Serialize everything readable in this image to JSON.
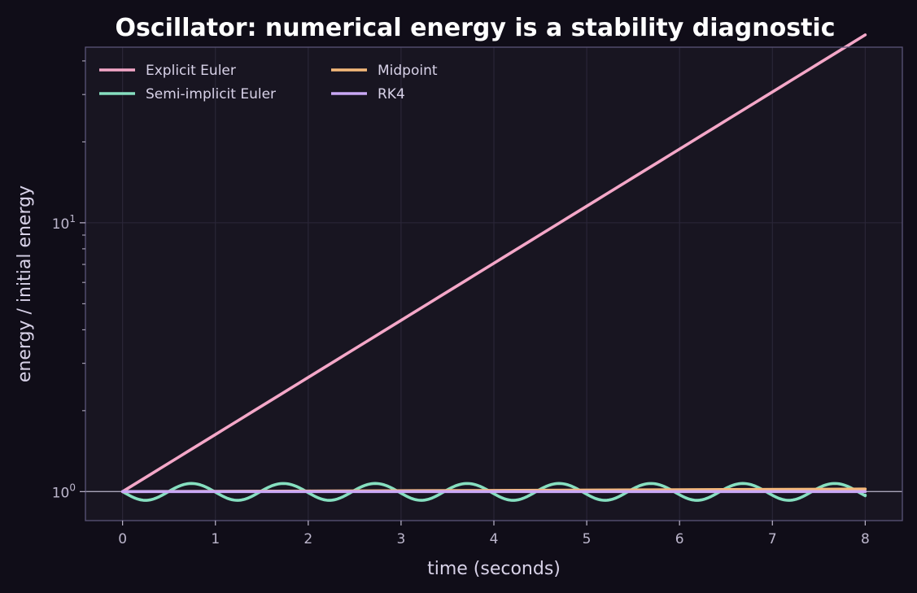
{
  "chart_data": {
    "type": "line",
    "title": "Oscillator: numerical energy is a stability diagnostic",
    "xlabel": "time (seconds)",
    "ylabel": "energy / initial energy",
    "xlim": [
      -0.4,
      8.4
    ],
    "ylim": [
      0.78,
      45
    ],
    "yscale": "log",
    "grid": true,
    "legend_position": "top-left",
    "reference_line": {
      "y": 1.0,
      "color": "#a9a4b8"
    },
    "x_ticks": [
      0,
      1,
      2,
      3,
      4,
      5,
      6,
      7,
      8
    ],
    "x_tick_labels": [
      "0",
      "1",
      "2",
      "3",
      "4",
      "5",
      "6",
      "7",
      "8"
    ],
    "y_major_ticks": [
      1,
      10
    ],
    "y_minor_ticks": [
      2,
      3,
      4,
      5,
      6,
      7,
      8,
      9,
      20,
      30,
      40
    ],
    "y_tick_labels": [
      {
        "value": 1,
        "base": "10",
        "exp": "0"
      },
      {
        "value": 10,
        "base": "10",
        "exp": "1"
      }
    ],
    "series": [
      {
        "name": "Explicit Euler",
        "color": "#f4a7c8",
        "x": [
          0,
          2,
          4,
          6,
          8
        ],
        "y": [
          1.0,
          2.65,
          7.1,
          19.0,
          50.0
        ]
      },
      {
        "name": "Semi-implicit Euler",
        "color": "#86dfc0",
        "model": "oscillating",
        "center": 1.0,
        "amplitude": 0.072,
        "period": 0.99,
        "x": [
          0,
          0.25,
          0.5,
          0.75,
          1.0,
          1.25,
          1.5,
          1.75,
          2.0,
          2.25,
          2.5,
          2.75,
          3.0,
          3.25,
          3.5,
          3.75,
          4.0,
          4.25,
          4.5,
          4.75,
          5.0,
          5.25,
          5.5,
          5.75,
          6.0,
          6.25,
          6.5,
          6.75,
          7.0,
          7.25,
          7.5,
          7.75,
          8.0
        ],
        "y": [
          1.0,
          0.93,
          1.0,
          1.07,
          1.0,
          0.93,
          1.0,
          1.07,
          1.0,
          0.93,
          1.0,
          1.07,
          1.0,
          0.93,
          1.0,
          1.07,
          1.0,
          0.93,
          1.0,
          1.07,
          1.0,
          0.93,
          1.0,
          1.07,
          1.0,
          0.93,
          1.0,
          1.07,
          1.0,
          0.93,
          1.0,
          1.07,
          0.97
        ]
      },
      {
        "name": "Midpoint",
        "color": "#f5b97a",
        "x": [
          0,
          2,
          4,
          6,
          8
        ],
        "y": [
          1.0,
          1.005,
          1.01,
          1.016,
          1.022
        ]
      },
      {
        "name": "RK4",
        "color": "#c9a8f5",
        "x": [
          0,
          2,
          4,
          6,
          8
        ],
        "y": [
          1.0,
          1.0,
          1.0,
          1.0,
          1.0
        ]
      }
    ]
  }
}
